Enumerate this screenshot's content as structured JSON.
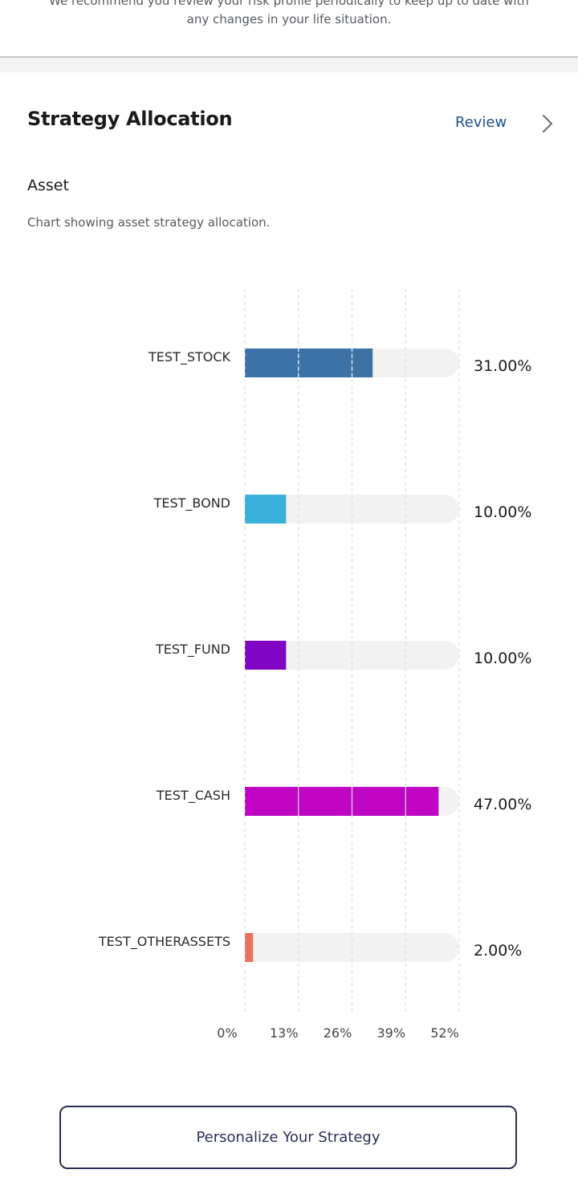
{
  "risk_notice": {
    "line1": "We recommend you review your risk profile periodically to keep up to date with",
    "line2": "any changes in your life situation."
  },
  "strategy": {
    "title": "Strategy Allocation",
    "review_label": "Review",
    "chevron_icon": "chevron-right-icon"
  },
  "asset": {
    "heading": "Asset",
    "description": "Chart showing asset strategy allocation."
  },
  "chart_data": {
    "type": "bar",
    "orientation": "horizontal",
    "categories": [
      "TEST_STOCK",
      "TEST_BOND",
      "TEST_FUND",
      "TEST_CASH",
      "TEST_OTHERASSETS"
    ],
    "values": [
      31,
      10,
      10,
      47,
      2
    ],
    "value_labels": [
      "31.00%",
      "10.00%",
      "10.00%",
      "47.00%",
      "2.00%"
    ],
    "colors": [
      "#3d72a6",
      "#3aafd9",
      "#7e06c4",
      "#bf04c3",
      "#e8725e"
    ],
    "track_color": "#f2f2f2",
    "xlim": [
      0,
      52
    ],
    "xticks": [
      0,
      13,
      26,
      39,
      52
    ],
    "xtick_labels": [
      "0%",
      "13%",
      "26%",
      "39%",
      "52%"
    ],
    "grid": true,
    "title": "",
    "xlabel": "",
    "ylabel": ""
  },
  "cta": {
    "label": "Personalize Your Strategy"
  }
}
